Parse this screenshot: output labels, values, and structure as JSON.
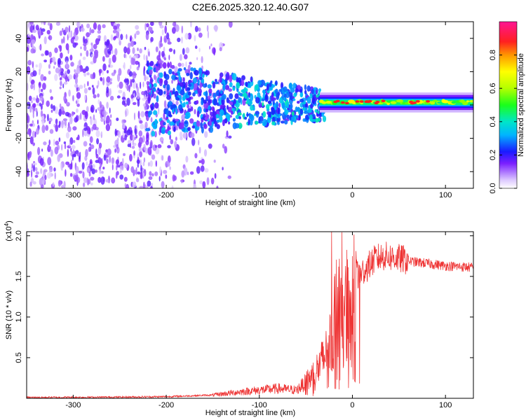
{
  "title": "C2E6.2025.320.12.40.G07",
  "chart_data": [
    {
      "type": "heatmap",
      "xlabel": "Height of straight line (km)",
      "ylabel": "Frequency (Hz)",
      "xlim": [
        -350,
        130
      ],
      "ylim": [
        -50,
        50
      ],
      "xticks": [
        -300,
        -200,
        -100,
        0,
        100
      ],
      "yticks": [
        -40,
        -20,
        0,
        20,
        40
      ],
      "colorbar": {
        "label": "Normalized spectral amplitude",
        "range": [
          0.0,
          1.0
        ],
        "ticks": [
          0.0,
          0.2,
          0.4,
          0.6,
          0.8
        ],
        "tick_labels": [
          "0.0",
          "0.2",
          "0.4",
          "0.6",
          "0.8"
        ]
      }
    },
    {
      "type": "line",
      "xlabel": "Height of straight line (km)",
      "ylabel": "SNR (10 * v/v)",
      "y_multiplier": "(x10",
      "y_multiplier_exp": "4",
      "y_multiplier_close": ")",
      "xlim": [
        -350,
        130
      ],
      "ylim": [
        0,
        2.05
      ],
      "xticks": [
        -300,
        -200,
        -100,
        0,
        100
      ],
      "yticks": [
        0.5,
        1.0,
        1.5,
        2.0
      ],
      "ytick_labels": [
        "0.5",
        "1.0",
        "1.5",
        "2.0"
      ],
      "color": "#ee3333",
      "series": [
        {
          "name": "SNR",
          "x": [
            -350,
            -250,
            -200,
            -150,
            -120,
            -100,
            -80,
            -60,
            -45,
            -35,
            -25,
            -18,
            -12,
            -8,
            -2,
            5,
            15,
            25,
            35,
            50,
            65,
            80,
            100,
            115,
            130
          ],
          "y": [
            0.01,
            0.015,
            0.02,
            0.04,
            0.08,
            0.1,
            0.12,
            0.1,
            0.25,
            0.4,
            0.6,
            1.1,
            0.9,
            1.2,
            1.0,
            1.5,
            1.6,
            1.72,
            1.75,
            1.72,
            1.68,
            1.66,
            1.63,
            1.62,
            1.61
          ]
        }
      ]
    }
  ]
}
